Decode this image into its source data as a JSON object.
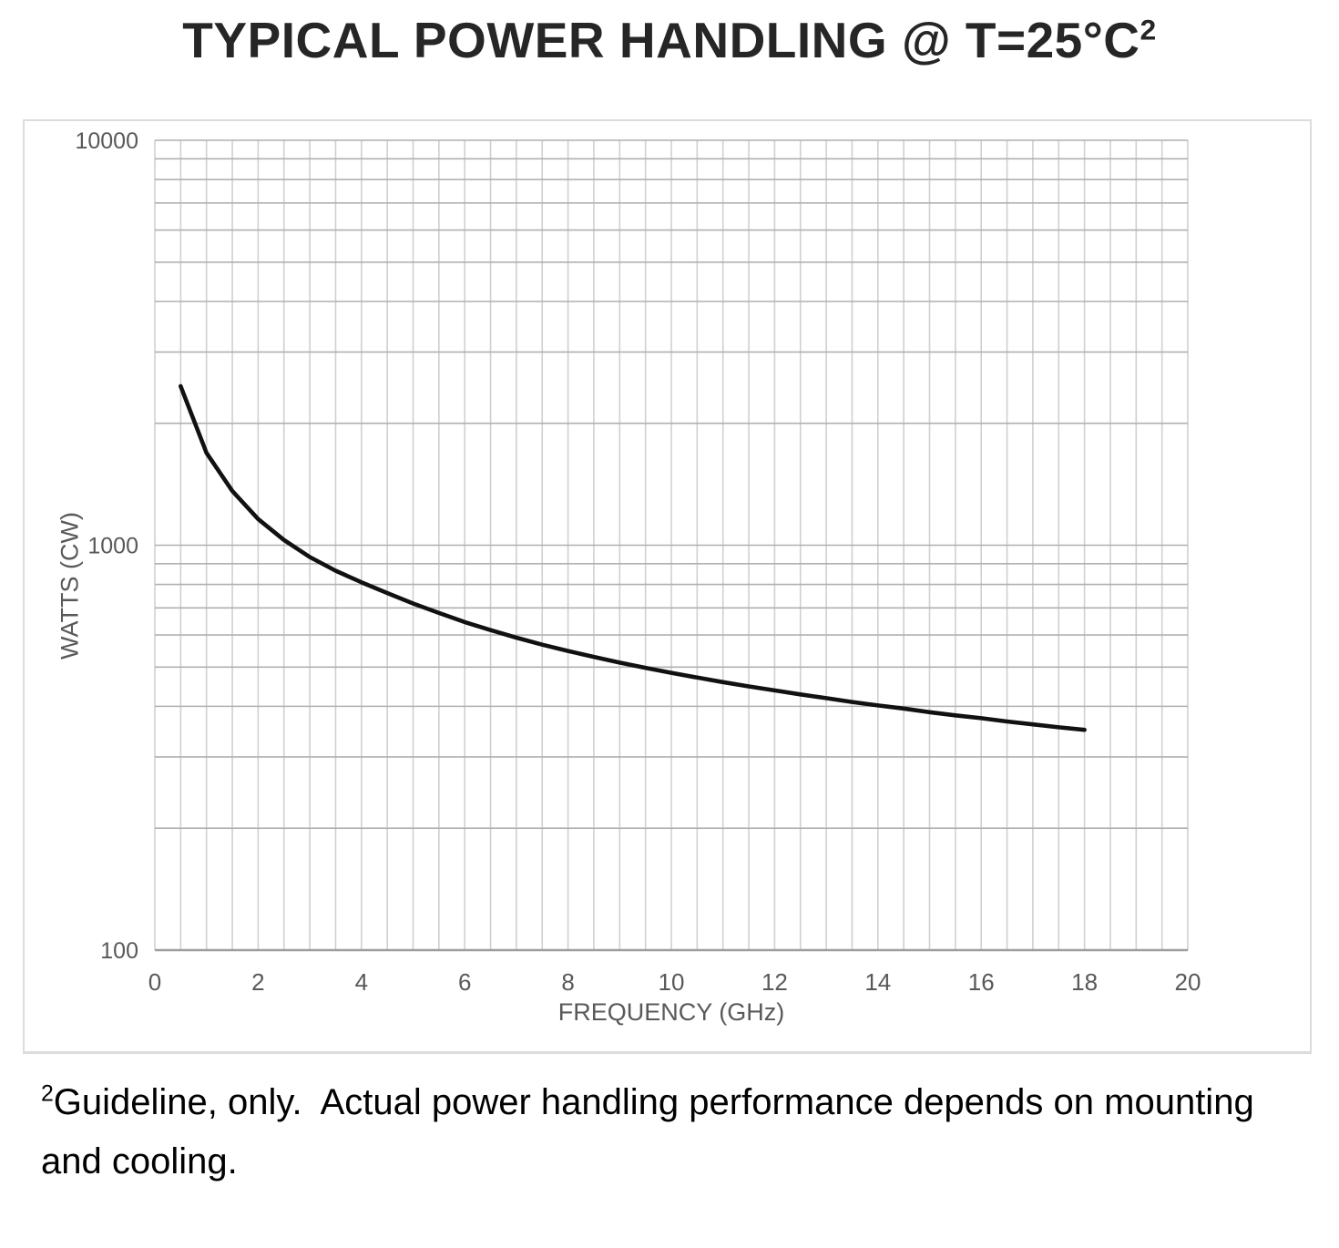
{
  "header": {
    "title": "TYPICAL POWER HANDLING @ T=25°C",
    "superscript": "2"
  },
  "footnote": {
    "superscript": "2",
    "text": "Guideline, only.  Actual power handling performance depends on mounting and cooling."
  },
  "chart_data": {
    "type": "line",
    "title": "TYPICAL POWER HANDLING @ T=25°C²",
    "xlabel": "FREQUENCY (GHz)",
    "ylabel": "WATTS (CW)",
    "x_range": [
      0,
      20
    ],
    "y_range": [
      100,
      10000
    ],
    "y_scale": "log",
    "grid": true,
    "x_minor_step": 0.5,
    "x_ticks": [
      0,
      2,
      4,
      6,
      8,
      10,
      12,
      14,
      16,
      18,
      20
    ],
    "y_ticks": [
      10000,
      1000,
      100
    ],
    "colors": {
      "curve": "#111111",
      "minor_grid_vertical": "#d0d0d0",
      "grid_horizontal": "#b0b0b0",
      "axis_line": "#9e9e9e",
      "tick_text": "#595959"
    },
    "series": [
      {
        "name": "power-handling-watts-cw",
        "x": [
          0.5,
          1,
          1.5,
          2,
          2.5,
          3,
          3.5,
          4,
          4.5,
          5,
          5.5,
          6,
          6.5,
          7,
          7.5,
          8,
          8.5,
          9,
          9.5,
          10,
          10.5,
          11,
          11.5,
          12,
          12.5,
          13,
          13.5,
          14,
          14.5,
          15,
          15.5,
          16,
          16.5,
          17,
          17.5,
          18
        ],
        "y": [
          2470,
          1690,
          1360,
          1160,
          1030,
          935,
          865,
          810,
          762,
          718,
          680,
          646,
          617,
          591,
          568,
          548,
          530,
          513,
          498,
          484,
          471,
          459,
          448,
          438,
          428,
          419,
          410,
          402,
          395,
          387,
          380,
          374,
          367,
          361,
          355,
          350
        ]
      }
    ]
  }
}
